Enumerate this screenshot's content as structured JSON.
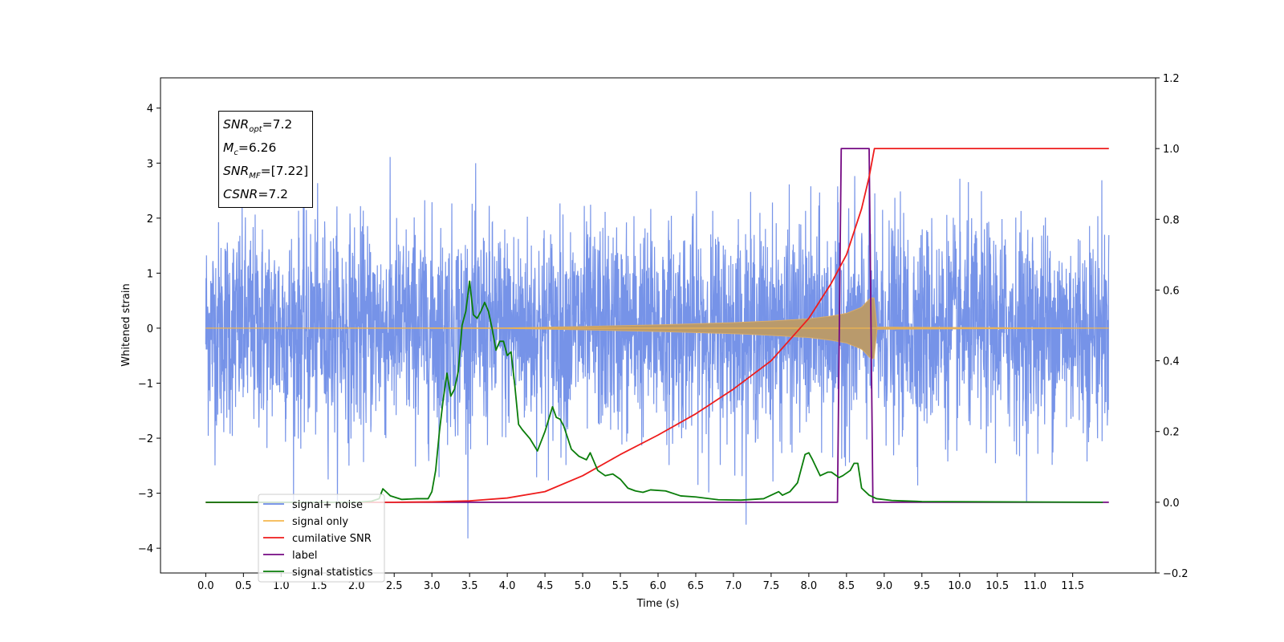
{
  "chart_data": {
    "type": "line",
    "title": "",
    "xlabel": "Time (s)",
    "ylabel": "Whitened strain",
    "xlim": [
      -0.6,
      12.6
    ],
    "ylim": [
      -4.45,
      4.55
    ],
    "ylim_right": [
      -0.2,
      1.2
    ],
    "x_ticks": [
      0.0,
      0.5,
      1.0,
      1.5,
      2.0,
      2.5,
      3.0,
      3.5,
      4.0,
      4.5,
      5.0,
      5.5,
      6.0,
      6.5,
      7.0,
      7.5,
      8.0,
      8.5,
      9.0,
      9.5,
      10.0,
      10.5,
      11.0,
      11.5
    ],
    "x_tick_labels": [
      "0.0",
      "0.5",
      "1.0",
      "1.5",
      "2.0",
      "2.5",
      "3.0",
      "3.5",
      "4.0",
      "4.5",
      "5.0",
      "5.5",
      "6.0",
      "6.5",
      "7.0",
      "7.5",
      "8.0",
      "8.5",
      "9.0",
      "9.5",
      "10.0",
      "10.5",
      "11.0",
      "11.5"
    ],
    "y_ticks": [
      -4,
      -3,
      -2,
      -1,
      0,
      1,
      2,
      3,
      4
    ],
    "y_tick_labels": [
      "−4",
      "−3",
      "−2",
      "−1",
      "0",
      "1",
      "2",
      "3",
      "4"
    ],
    "y_right_ticks": [
      -0.2,
      0.0,
      0.2,
      0.4,
      0.6,
      0.8,
      1.0,
      1.2
    ],
    "y_right_tick_labels": [
      "−0.2",
      "0.0",
      "0.2",
      "0.4",
      "0.6",
      "0.8",
      "1.0",
      "1.2"
    ],
    "grid": false,
    "legend_position": "lower-left",
    "annotation": {
      "snr_opt": "7.2",
      "mc": "6.26",
      "snr_mf": "[7.22]",
      "csnr": "7.2"
    },
    "series": [
      {
        "name": "signal+ noise",
        "color": "#6a8ae6",
        "axis": "left",
        "description": "whitened noise, approx. Gaussian sigma 1, x from 0.0 to 11.98",
        "x_range": [
          0.0,
          11.98
        ],
        "sigma": 1.0
      },
      {
        "name": "signal only",
        "color": "#f5b74e",
        "axis": "left",
        "description": "chirp envelope growing towards merger at ~8.85 s",
        "envelope": {
          "x": [
            0.0,
            4.0,
            5.0,
            6.0,
            7.0,
            7.5,
            8.0,
            8.3,
            8.5,
            8.7,
            8.82,
            8.87,
            8.9,
            11.98
          ],
          "amp": [
            0.0,
            0.005,
            0.03,
            0.06,
            0.1,
            0.13,
            0.17,
            0.22,
            0.27,
            0.38,
            0.55,
            0.55,
            0.02,
            0.0
          ]
        }
      },
      {
        "name": "cumilative SNR",
        "color": "#ee1c1c",
        "axis": "right",
        "x": [
          0.0,
          2.5,
          3.0,
          3.5,
          4.0,
          4.5,
          5.0,
          5.5,
          6.0,
          6.5,
          7.0,
          7.5,
          8.0,
          8.3,
          8.5,
          8.7,
          8.8,
          8.87,
          11.98
        ],
        "y": [
          0.0,
          0.0,
          0.001,
          0.004,
          0.012,
          0.03,
          0.075,
          0.135,
          0.19,
          0.25,
          0.32,
          0.4,
          0.52,
          0.62,
          0.7,
          0.83,
          0.92,
          1.0,
          1.0
        ]
      },
      {
        "name": "label",
        "color": "#750a83",
        "axis": "right",
        "x": [
          0.0,
          8.38,
          8.43,
          8.8,
          8.85,
          11.98
        ],
        "y": [
          0.0,
          0.0,
          1.0,
          1.0,
          0.0,
          0.0
        ]
      },
      {
        "name": "signal statistics",
        "color": "#0a7d0a",
        "axis": "right",
        "x": [
          0.0,
          2.0,
          2.2,
          2.3,
          2.35,
          2.45,
          2.6,
          2.8,
          2.95,
          3.0,
          3.05,
          3.1,
          3.15,
          3.2,
          3.25,
          3.3,
          3.35,
          3.4,
          3.45,
          3.5,
          3.55,
          3.6,
          3.65,
          3.7,
          3.75,
          3.8,
          3.85,
          3.9,
          3.95,
          4.0,
          4.05,
          4.1,
          4.15,
          4.2,
          4.3,
          4.4,
          4.5,
          4.6,
          4.65,
          4.7,
          4.75,
          4.85,
          4.95,
          5.05,
          5.1,
          5.2,
          5.3,
          5.4,
          5.5,
          5.6,
          5.7,
          5.8,
          5.9,
          6.1,
          6.3,
          6.5,
          6.8,
          7.1,
          7.4,
          7.6,
          7.65,
          7.75,
          7.85,
          7.95,
          8.0,
          8.05,
          8.15,
          8.25,
          8.3,
          8.4,
          8.45,
          8.55,
          8.6,
          8.65,
          8.7,
          8.8,
          8.9,
          9.1,
          9.5,
          10.5,
          11.9
        ],
        "y": [
          0.0,
          0.0,
          0.003,
          0.01,
          0.038,
          0.018,
          0.008,
          0.01,
          0.01,
          0.03,
          0.09,
          0.2,
          0.29,
          0.365,
          0.3,
          0.32,
          0.37,
          0.5,
          0.54,
          0.625,
          0.53,
          0.52,
          0.54,
          0.565,
          0.54,
          0.49,
          0.43,
          0.455,
          0.455,
          0.415,
          0.425,
          0.33,
          0.22,
          0.205,
          0.18,
          0.145,
          0.2,
          0.27,
          0.24,
          0.235,
          0.215,
          0.15,
          0.13,
          0.12,
          0.14,
          0.09,
          0.075,
          0.08,
          0.065,
          0.04,
          0.032,
          0.028,
          0.035,
          0.032,
          0.018,
          0.015,
          0.007,
          0.006,
          0.01,
          0.03,
          0.02,
          0.03,
          0.055,
          0.135,
          0.14,
          0.12,
          0.075,
          0.085,
          0.085,
          0.07,
          0.075,
          0.09,
          0.11,
          0.11,
          0.04,
          0.02,
          0.01,
          0.005,
          0.002,
          0.001,
          0.0
        ]
      }
    ]
  }
}
